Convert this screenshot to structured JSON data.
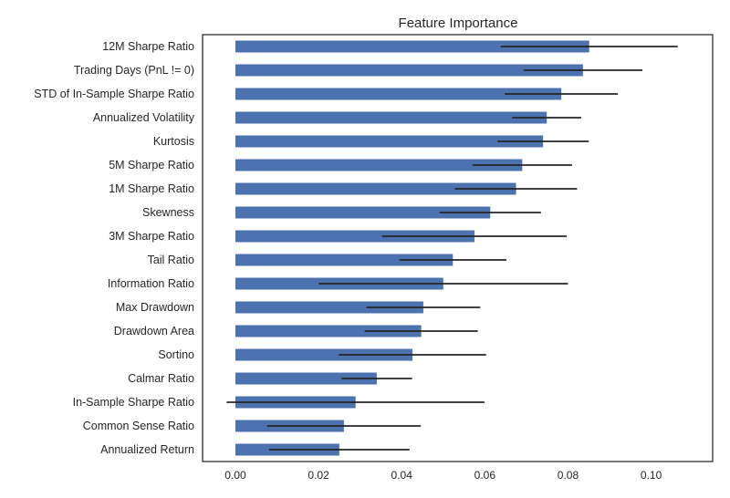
{
  "chart_data": {
    "type": "bar",
    "orientation": "horizontal",
    "title": "Feature Importance",
    "xlabel": "",
    "ylabel": "",
    "xlim": [
      -0.0079,
      0.1148
    ],
    "xticks": [
      "0.00",
      "0.02",
      "0.04",
      "0.06",
      "0.08",
      "0.10"
    ],
    "grid": false,
    "legend": "none",
    "bar_color": "#4c72b0",
    "errorbar_color": "#262626",
    "categories": [
      "12M Sharpe Ratio",
      "Trading Days (PnL != 0)",
      "STD of In-Sample Sharpe Ratio",
      "Annualized Volatility",
      "Kurtosis",
      "5M Sharpe Ratio",
      "1M Sharpe Ratio",
      "Skewness",
      "3M Sharpe Ratio",
      "Tail Ratio",
      "Information Ratio",
      "Max Drawdown",
      "Drawdown Area",
      "Sortino",
      "Calmar Ratio",
      "In-Sample Sharpe Ratio",
      "Common Sense Ratio",
      "Annualized Return"
    ],
    "values": [
      0.0851,
      0.0836,
      0.0784,
      0.0749,
      0.074,
      0.069,
      0.0675,
      0.0613,
      0.0575,
      0.0523,
      0.05,
      0.0452,
      0.0447,
      0.0426,
      0.034,
      0.0289,
      0.0261,
      0.025
    ],
    "errors": [
      0.0213,
      0.0143,
      0.0136,
      0.0083,
      0.011,
      0.012,
      0.0147,
      0.0122,
      0.0222,
      0.0129,
      0.03,
      0.0137,
      0.0136,
      0.0177,
      0.0085,
      0.031,
      0.0185,
      0.0169
    ]
  }
}
